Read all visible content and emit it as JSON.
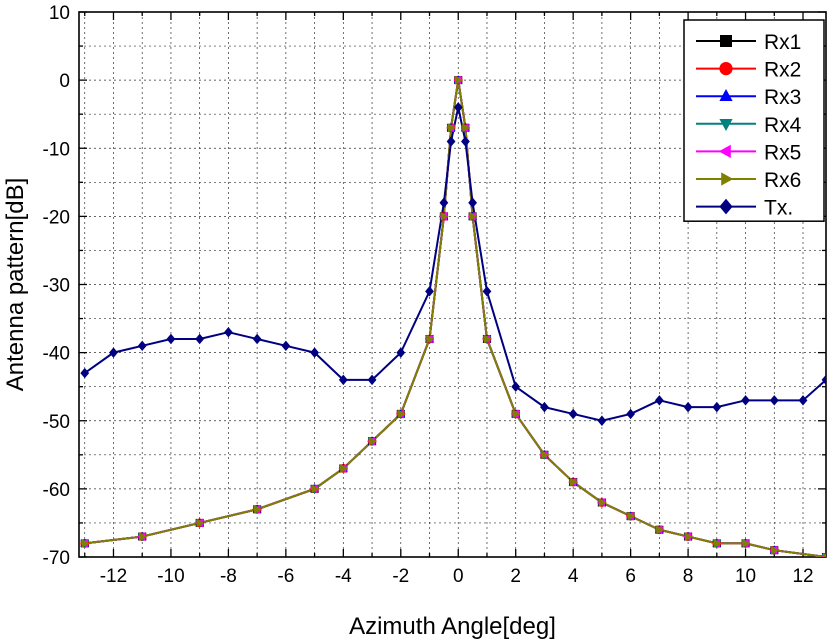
{
  "chart_data": {
    "type": "line",
    "title": "",
    "xlabel": "Azimuth Angle[deg]",
    "ylabel": "Antenna pattern[dB]",
    "xlim": [
      -13.2,
      12.8
    ],
    "ylim": [
      -70,
      10
    ],
    "x_ticks": [
      -12,
      -10,
      -8,
      -6,
      -4,
      -2,
      0,
      2,
      4,
      6,
      8,
      10,
      12
    ],
    "y_ticks": [
      10,
      0,
      -10,
      -20,
      -30,
      -40,
      -50,
      -60,
      -70
    ],
    "grid": true,
    "legend_position": "top-right",
    "series": [
      {
        "name": "Rx1",
        "color": "#000000",
        "marker": "square",
        "x": [
          -13,
          -11,
          -9,
          -7,
          -5,
          -4,
          -3,
          -2,
          -1,
          -0.5,
          -0.25,
          0,
          0.25,
          0.5,
          1,
          2,
          3,
          4,
          5,
          6,
          7,
          8,
          9,
          10,
          11,
          12.8
        ],
        "y": [
          -68,
          -67,
          -65,
          -63,
          -60,
          -57,
          -53,
          -49,
          -38,
          -20,
          -7,
          0,
          -7,
          -20,
          -38,
          -49,
          -55,
          -59,
          -62,
          -64,
          -66,
          -67,
          -68,
          -68,
          -69,
          -70
        ]
      },
      {
        "name": "Rx2",
        "color": "#ff0000",
        "marker": "circle",
        "x": [
          -13,
          -11,
          -9,
          -7,
          -5,
          -4,
          -3,
          -2,
          -1,
          -0.5,
          -0.25,
          0,
          0.25,
          0.5,
          1,
          2,
          3,
          4,
          5,
          6,
          7,
          8,
          9,
          10,
          11,
          12.8
        ],
        "y": [
          -68,
          -67,
          -65,
          -63,
          -60,
          -57,
          -53,
          -49,
          -38,
          -20,
          -7,
          0,
          -7,
          -20,
          -38,
          -49,
          -55,
          -59,
          -62,
          -64,
          -66,
          -67,
          -68,
          -68,
          -69,
          -70
        ]
      },
      {
        "name": "Rx3",
        "color": "#0000ff",
        "marker": "triangle-up",
        "x": [
          -13,
          -11,
          -9,
          -7,
          -5,
          -4,
          -3,
          -2,
          -1,
          -0.5,
          -0.25,
          0,
          0.25,
          0.5,
          1,
          2,
          3,
          4,
          5,
          6,
          7,
          8,
          9,
          10,
          11,
          12.8
        ],
        "y": [
          -68,
          -67,
          -65,
          -63,
          -60,
          -57,
          -53,
          -49,
          -38,
          -20,
          -7,
          0,
          -7,
          -20,
          -38,
          -49,
          -55,
          -59,
          -62,
          -64,
          -66,
          -67,
          -68,
          -68,
          -69,
          -70
        ]
      },
      {
        "name": "Rx4",
        "color": "#008080",
        "marker": "triangle-down",
        "x": [
          -13,
          -11,
          -9,
          -7,
          -5,
          -4,
          -3,
          -2,
          -1,
          -0.5,
          -0.25,
          0,
          0.25,
          0.5,
          1,
          2,
          3,
          4,
          5,
          6,
          7,
          8,
          9,
          10,
          11,
          12.8
        ],
        "y": [
          -68,
          -67,
          -65,
          -63,
          -60,
          -57,
          -53,
          -49,
          -38,
          -20,
          -7,
          0,
          -7,
          -20,
          -38,
          -49,
          -55,
          -59,
          -62,
          -64,
          -66,
          -67,
          -68,
          -68,
          -69,
          -70
        ]
      },
      {
        "name": "Rx5",
        "color": "#ff00ff",
        "marker": "triangle-left",
        "x": [
          -13,
          -11,
          -9,
          -7,
          -5,
          -4,
          -3,
          -2,
          -1,
          -0.5,
          -0.25,
          0,
          0.25,
          0.5,
          1,
          2,
          3,
          4,
          5,
          6,
          7,
          8,
          9,
          10,
          11,
          12.8
        ],
        "y": [
          -68,
          -67,
          -65,
          -63,
          -60,
          -57,
          -53,
          -49,
          -38,
          -20,
          -7,
          0,
          -7,
          -20,
          -38,
          -49,
          -55,
          -59,
          -62,
          -64,
          -66,
          -67,
          -68,
          -68,
          -69,
          -70
        ]
      },
      {
        "name": "Rx6",
        "color": "#808000",
        "marker": "triangle-right",
        "x": [
          -13,
          -11,
          -9,
          -7,
          -5,
          -4,
          -3,
          -2,
          -1,
          -0.5,
          -0.25,
          0,
          0.25,
          0.5,
          1,
          2,
          3,
          4,
          5,
          6,
          7,
          8,
          9,
          10,
          11,
          12.8
        ],
        "y": [
          -68,
          -67,
          -65,
          -63,
          -60,
          -57,
          -53,
          -49,
          -38,
          -20,
          -7,
          0,
          -7,
          -20,
          -38,
          -49,
          -55,
          -59,
          -62,
          -64,
          -66,
          -67,
          -68,
          -68,
          -69,
          -70
        ]
      },
      {
        "name": "Tx.",
        "color": "#000080",
        "marker": "diamond",
        "x": [
          -13,
          -12,
          -11,
          -10,
          -9,
          -8,
          -7,
          -6,
          -5,
          -4,
          -3,
          -2,
          -1,
          -0.5,
          -0.25,
          0,
          0.25,
          0.5,
          1,
          2,
          3,
          4,
          5,
          6,
          7,
          8,
          9,
          10,
          11,
          12,
          12.8
        ],
        "y": [
          -43,
          -40,
          -39,
          -38,
          -38,
          -37,
          -38,
          -39,
          -40,
          -44,
          -44,
          -40,
          -31,
          -18,
          -9,
          -4,
          -9,
          -18,
          -31,
          -45,
          -48,
          -49,
          -50,
          -49,
          -47,
          -48,
          -48,
          -47,
          -47,
          -47,
          -44
        ]
      }
    ]
  }
}
